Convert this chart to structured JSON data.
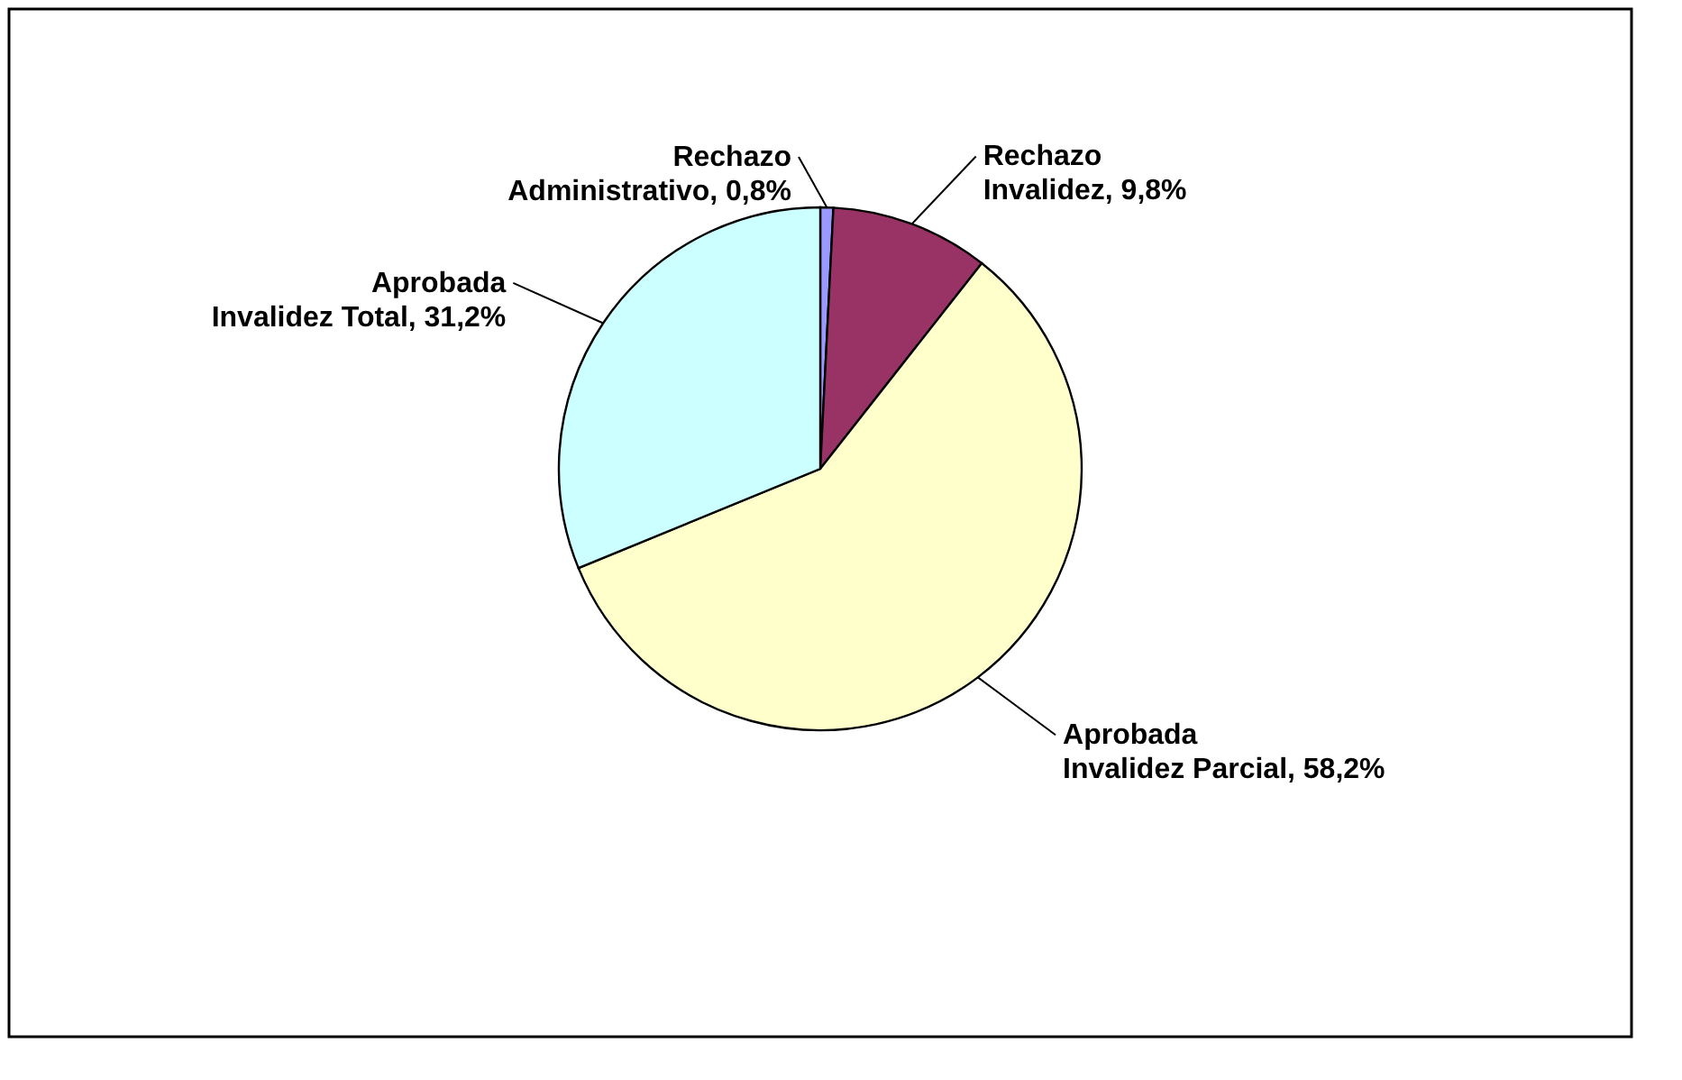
{
  "chart_data": {
    "type": "pie",
    "categories": [
      "Rechazo Administrativo",
      "Rechazo Invalidez",
      "Aprobada Invalidez Parcial",
      "Aprobada Invalidez Total"
    ],
    "values": [
      0.8,
      9.8,
      58.2,
      31.2
    ],
    "value_labels": [
      "0,8%",
      "9,8%",
      "58,2%",
      "31,2%"
    ],
    "colors": [
      "#9999ff",
      "#993366",
      "#ffffcc",
      "#ccffff"
    ],
    "legend": false
  }
}
